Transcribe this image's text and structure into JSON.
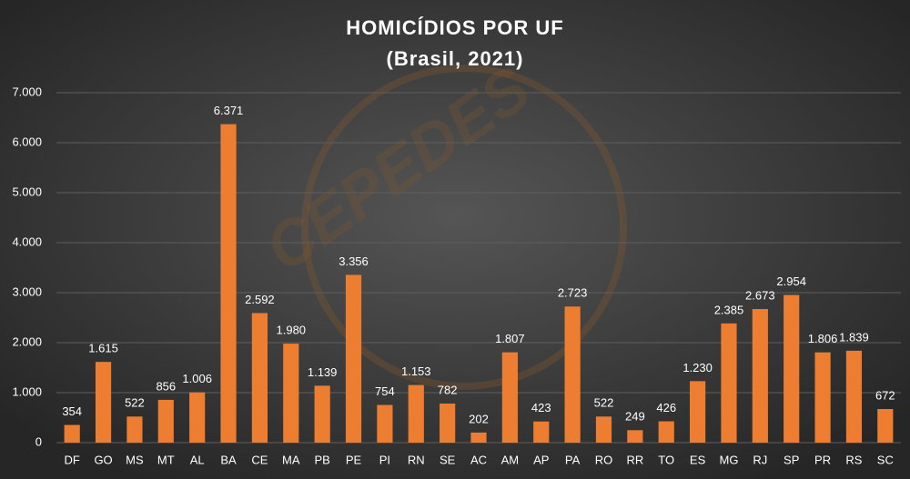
{
  "chart_data": {
    "type": "bar",
    "title": "HOMICÍDIOS POR UF",
    "subtitle": "(Brasil, 2021)",
    "watermark": "CEPEDES",
    "categories": [
      "DF",
      "GO",
      "MS",
      "MT",
      "AL",
      "BA",
      "CE",
      "MA",
      "PB",
      "PE",
      "PI",
      "RN",
      "SE",
      "AC",
      "AM",
      "AP",
      "PA",
      "RO",
      "RR",
      "TO",
      "ES",
      "MG",
      "RJ",
      "SP",
      "PR",
      "RS",
      "SC"
    ],
    "values": [
      354,
      1615,
      522,
      856,
      1006,
      6371,
      2592,
      1980,
      1139,
      3356,
      754,
      1153,
      782,
      202,
      1807,
      423,
      2723,
      522,
      249,
      426,
      1230,
      2385,
      2673,
      2954,
      1806,
      1839,
      672
    ],
    "value_labels": [
      "354",
      "1.615",
      "522",
      "856",
      "1.006",
      "6.371",
      "2.592",
      "1.980",
      "1.139",
      "3.356",
      "754",
      "1.153",
      "782",
      "202",
      "1.807",
      "423",
      "2.723",
      "522",
      "249",
      "426",
      "1.230",
      "2.385",
      "2.673",
      "2.954",
      "1.806",
      "1.839",
      "672"
    ],
    "color": "#ed7d31",
    "ylim": [
      0,
      7000
    ],
    "yticks": [
      0,
      {
        "value": 1000,
        "label": "1.000"
      },
      {
        "value": 2000,
        "label": "2.000"
      },
      {
        "value": 3000,
        "label": "3.000"
      },
      {
        "value": 4000,
        "label": "4.000"
      },
      {
        "value": 5000,
        "label": "5.000"
      },
      {
        "value": 6000,
        "label": "6.000"
      },
      {
        "value": 7000,
        "label": "7.000"
      }
    ],
    "grid": true
  }
}
